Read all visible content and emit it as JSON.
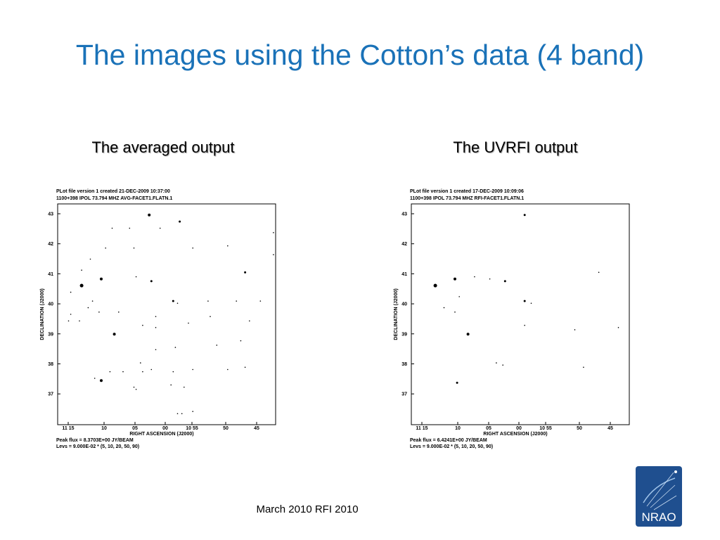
{
  "title": "The images using the Cotton’s data (4 band)",
  "panels": [
    {
      "heading": "The averaged  output",
      "plot": {
        "header_lines": [
          "PLot file version 1  created 21-DEC-2009 10:37:00",
          "1100+398  IPOL  73.794 MHZ   AVG-FACET1.FLATN.1"
        ],
        "y_axis_label": "DECLINATION (J2000)",
        "y_ticks": [
          "43",
          "42",
          "41",
          "40",
          "39",
          "38",
          "37"
        ],
        "x_axis_label": "RIGHT ASCENSION (J2000)",
        "x_ticks": [
          "11 15",
          "10",
          "05",
          "00",
          "10 55",
          "50",
          "45"
        ],
        "footer_lines": [
          "Peak flux =  8.3703E+00 JY/BEAM",
          "Levs = 9.000E-02 * (5, 10, 20, 50, 90)"
        ]
      }
    },
    {
      "heading": "The UVRFI output",
      "plot": {
        "header_lines": [
          "PLot file version 1  created 17-DEC-2009 10:09:06",
          "1100+398  IPOL  73.794 MHZ   RFI-FACET1.FLATN.1"
        ],
        "y_axis_label": "DECLINATION (J2000)",
        "y_ticks": [
          "43",
          "42",
          "41",
          "40",
          "39",
          "38",
          "37"
        ],
        "x_axis_label": "RIGHT ASCENSION (J2000)",
        "x_ticks": [
          "11 15",
          "10",
          "05",
          "00",
          "10 55",
          "50",
          "45"
        ],
        "footer_lines": [
          "Peak flux =  6.4241E+00 JY/BEAM",
          "Levs = 9.000E-02 * (5, 10, 20, 50, 90)"
        ]
      }
    }
  ],
  "footer": "March 2010   RFI 2010",
  "logo": "NRAO"
}
